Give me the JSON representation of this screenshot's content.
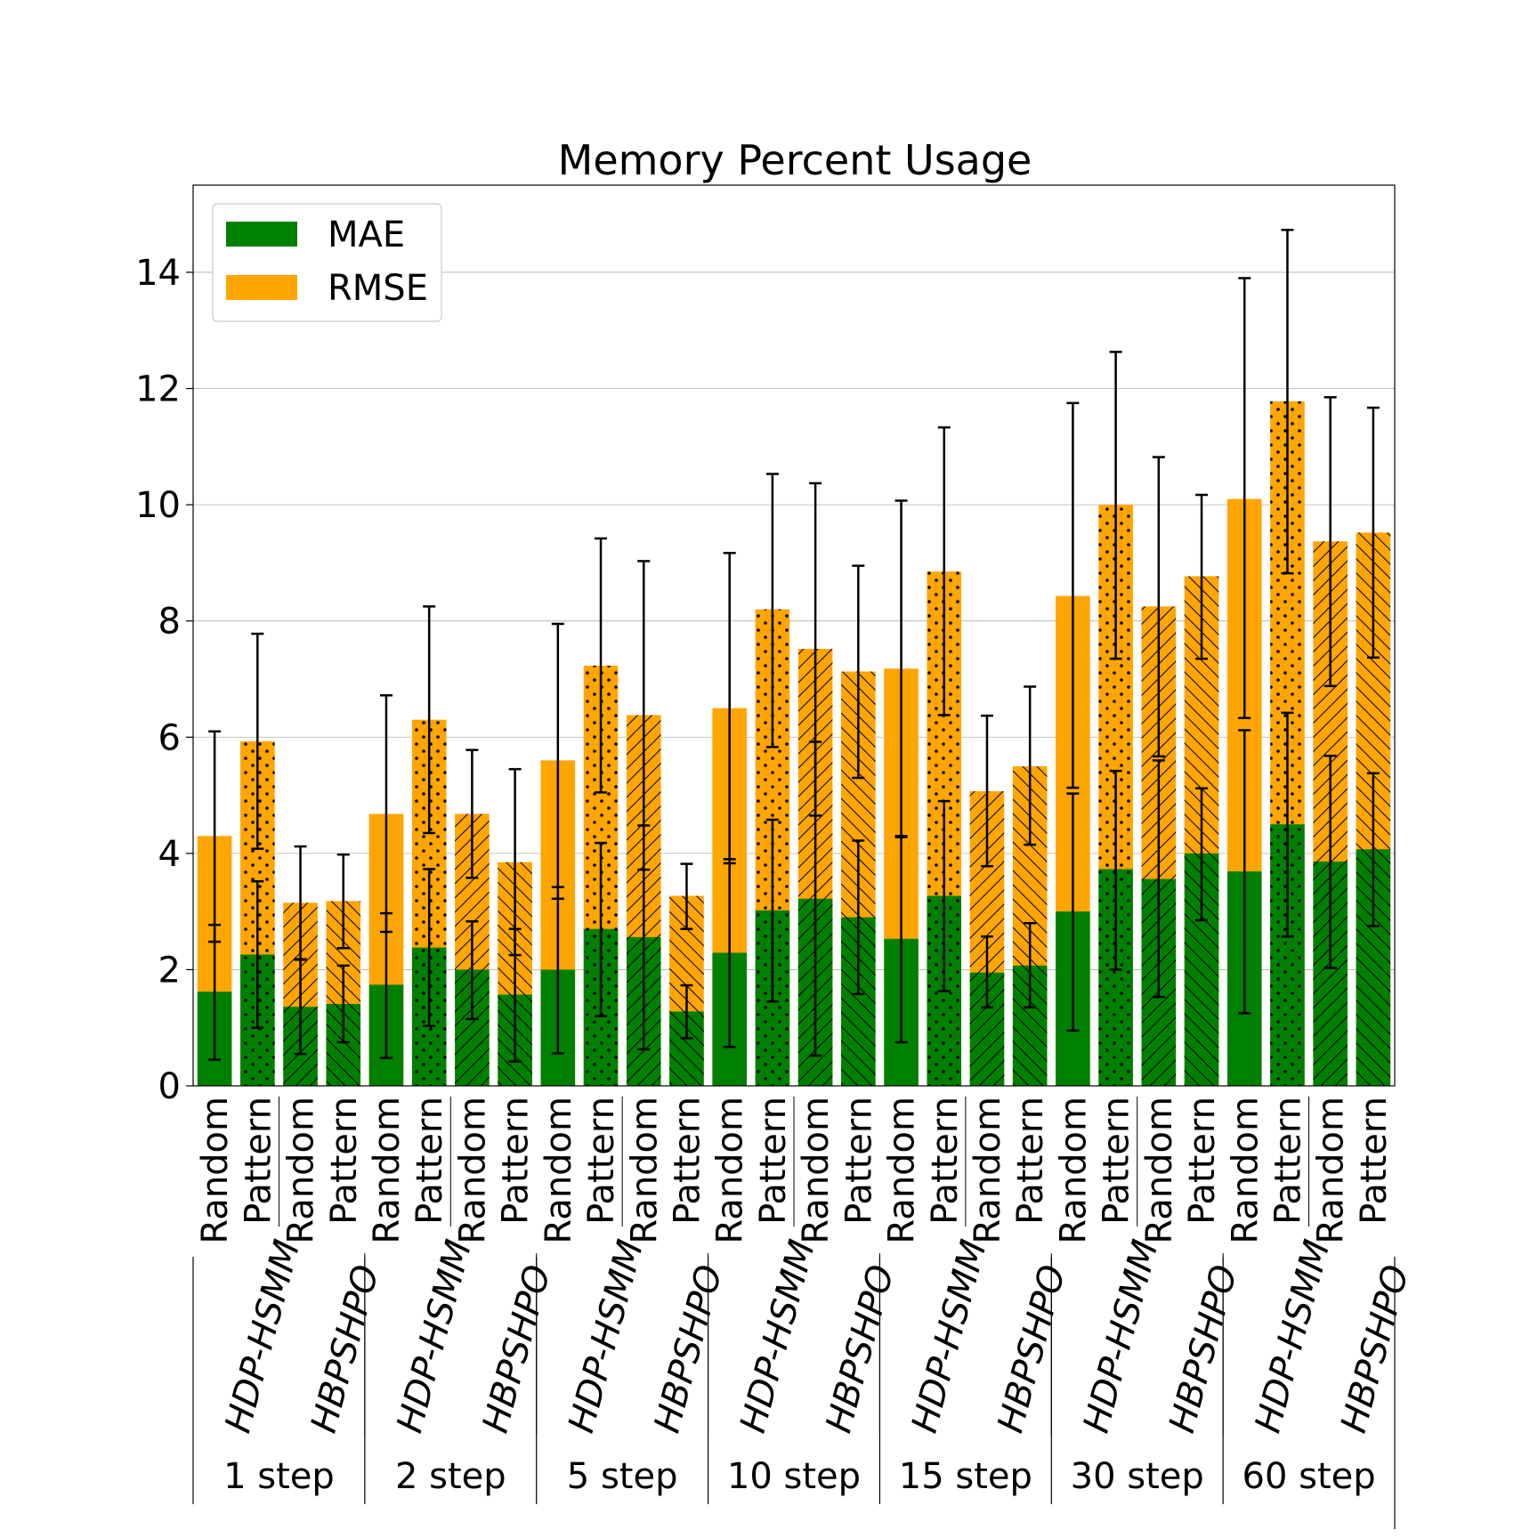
{
  "chart_data": {
    "type": "bar",
    "title": "Memory Percent Usage",
    "ylim": [
      0,
      15.5
    ],
    "yticks": [
      0,
      2,
      4,
      6,
      8,
      10,
      12,
      14
    ],
    "grid": true,
    "legend_placement": "top-left",
    "stacked": "overlay",
    "colors": {
      "MAE": "#008000",
      "RMSE": "#FFA500"
    },
    "legend": [
      {
        "name": "MAE",
        "color": "#008000"
      },
      {
        "name": "RMSE",
        "color": "#FFA500"
      }
    ],
    "groups": [
      "1 step",
      "2 step",
      "5 step",
      "10 step",
      "15 step",
      "30 step",
      "60 step"
    ],
    "methods": [
      "HDP-HSMM",
      "HBPSHPO"
    ],
    "workloads": [
      "Random",
      "Pattern"
    ],
    "hatch_by_bar": [
      "none",
      "dots",
      "diag-up",
      "diag-down"
    ],
    "series": [
      {
        "name": "MAE",
        "values": [
          1.62,
          2.26,
          1.36,
          1.41,
          1.74,
          2.38,
          2.0,
          1.57,
          2.0,
          2.7,
          2.56,
          1.28,
          2.29,
          3.02,
          3.22,
          2.9,
          2.53,
          3.27,
          1.95,
          2.07,
          3.0,
          3.73,
          3.56,
          4.0,
          3.69,
          4.5,
          3.86,
          4.07
        ],
        "err_low": [
          0.45,
          1.0,
          0.55,
          0.75,
          0.48,
          1.03,
          1.15,
          0.42,
          0.56,
          1.2,
          0.63,
          0.82,
          0.67,
          1.45,
          0.52,
          1.58,
          0.75,
          1.63,
          1.35,
          1.35,
          0.95,
          2.0,
          1.53,
          2.85,
          1.25,
          2.57,
          2.03,
          2.75
        ],
        "err_high": [
          2.77,
          3.52,
          2.17,
          2.07,
          2.97,
          3.73,
          2.83,
          2.7,
          3.42,
          4.18,
          4.48,
          1.73,
          3.9,
          4.58,
          5.92,
          4.22,
          4.3,
          4.9,
          2.57,
          2.8,
          5.03,
          5.42,
          5.6,
          5.12,
          6.12,
          6.42,
          5.68,
          5.38
        ]
      },
      {
        "name": "RMSE",
        "values": [
          4.3,
          5.93,
          3.15,
          3.18,
          4.68,
          6.3,
          4.68,
          3.85,
          5.6,
          7.23,
          6.38,
          3.27,
          6.5,
          8.2,
          7.52,
          7.13,
          7.18,
          8.85,
          5.07,
          5.5,
          8.43,
          10.0,
          8.25,
          8.77,
          10.1,
          11.78,
          9.37,
          9.52
        ],
        "err_low": [
          2.48,
          4.08,
          2.18,
          2.37,
          2.65,
          4.35,
          3.58,
          2.25,
          3.22,
          5.05,
          3.72,
          2.7,
          3.83,
          5.83,
          4.65,
          5.3,
          4.28,
          6.38,
          3.78,
          4.15,
          5.13,
          7.35,
          5.67,
          7.35,
          6.33,
          8.82,
          6.88,
          7.37
        ],
        "err_high": [
          6.1,
          7.78,
          4.12,
          3.98,
          6.72,
          8.25,
          5.78,
          5.45,
          7.95,
          9.42,
          9.03,
          3.82,
          9.17,
          10.53,
          10.37,
          8.95,
          10.07,
          11.33,
          6.37,
          6.87,
          11.75,
          12.63,
          10.82,
          10.17,
          13.9,
          14.73,
          11.85,
          11.67
        ]
      }
    ]
  }
}
